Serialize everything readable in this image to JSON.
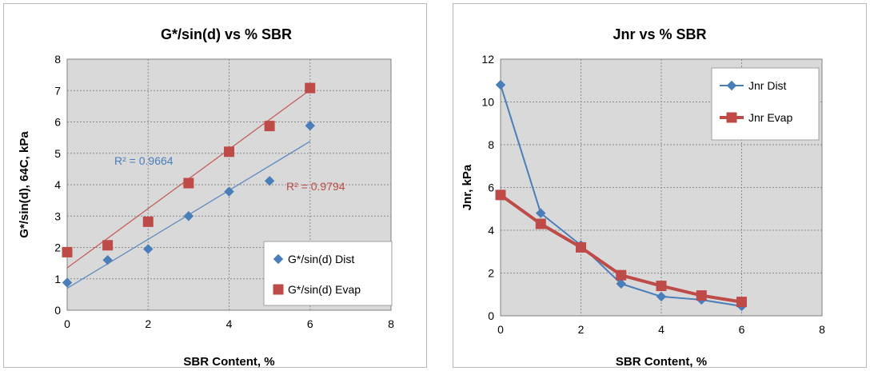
{
  "colors": {
    "blue": "#4a7ebb",
    "red": "#be4b48",
    "plot_bg": "#d9d9d9",
    "grid": "#8c8c8c"
  },
  "chart_data": [
    {
      "type": "scatter",
      "title": "G*/sin(d) vs % SBR",
      "xlabel": "SBR Content, %",
      "ylabel": "G*/sin(d), 64C, kPa",
      "xlim": [
        0,
        8
      ],
      "ylim": [
        0,
        8
      ],
      "xticks": [
        "0",
        "2",
        "4",
        "6",
        "8"
      ],
      "yticks": [
        "0",
        "1",
        "2",
        "3",
        "4",
        "5",
        "6",
        "7",
        "8"
      ],
      "grid": true,
      "legend": "bottom-right",
      "series": [
        {
          "name": "G*/sin(d) Dist",
          "marker": "diamond",
          "color": "#4a7ebb",
          "x": [
            0,
            1,
            2,
            3,
            4,
            5,
            6
          ],
          "y": [
            0.88,
            1.6,
            1.95,
            3.0,
            3.78,
            4.12,
            5.88
          ],
          "trendline": [
            [
              0,
              0.7
            ],
            [
              6,
              5.38
            ]
          ],
          "r2_label": "R² = 0.9664"
        },
        {
          "name": "G*/sin(d) Evap",
          "marker": "square",
          "color": "#be4b48",
          "x": [
            0,
            1,
            2,
            3,
            4,
            5,
            6
          ],
          "y": [
            1.85,
            2.07,
            2.82,
            4.05,
            5.05,
            5.87,
            7.08
          ],
          "trendline": [
            [
              0,
              1.35
            ],
            [
              6,
              7.02
            ]
          ],
          "r2_label": "R² = 0.9794"
        }
      ]
    },
    {
      "type": "line",
      "title": "Jnr vs % SBR",
      "xlabel": "SBR Content, %",
      "ylabel": "Jnr, kPa",
      "xlim": [
        0,
        8
      ],
      "ylim": [
        0,
        12
      ],
      "xticks": [
        "0",
        "2",
        "4",
        "6",
        "8"
      ],
      "yticks": [
        "0",
        "2",
        "4",
        "6",
        "8",
        "10",
        "12"
      ],
      "grid": true,
      "legend": "top-right",
      "series": [
        {
          "name": "Jnr Dist",
          "marker": "diamond",
          "color": "#4a7ebb",
          "x": [
            0,
            1,
            2,
            3,
            4,
            5,
            6
          ],
          "y": [
            10.8,
            4.8,
            3.3,
            1.5,
            0.9,
            0.75,
            0.45
          ]
        },
        {
          "name": "Jnr Evap",
          "marker": "square",
          "color": "#be4b48",
          "x": [
            0,
            1,
            2,
            3,
            4,
            5,
            6
          ],
          "y": [
            5.65,
            4.3,
            3.2,
            1.9,
            1.4,
            0.95,
            0.65
          ]
        }
      ]
    }
  ]
}
